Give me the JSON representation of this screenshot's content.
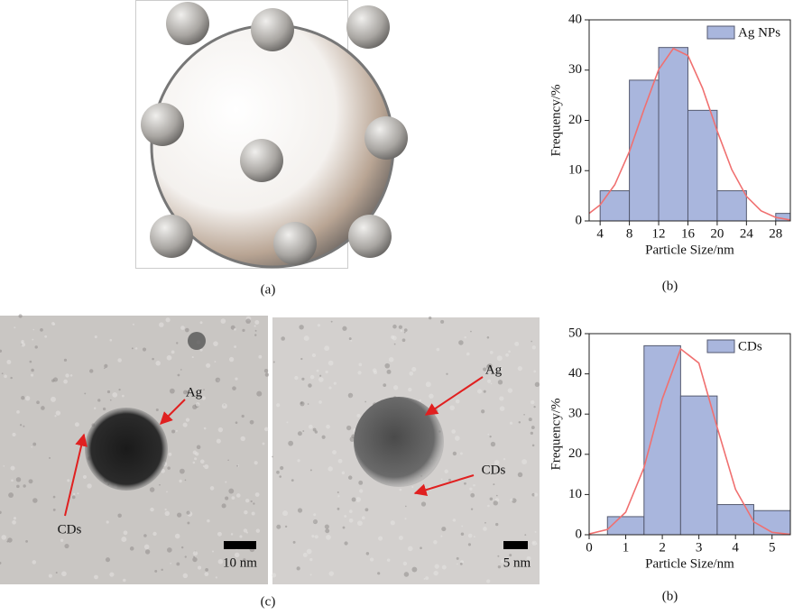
{
  "chart_data": [
    {
      "type": "histogram",
      "name": "Ag NPs",
      "color": "#a9b6dd",
      "edge_color": "#555a70",
      "bins": [
        4,
        8,
        12,
        16,
        20,
        24,
        28,
        32
      ],
      "values": [
        6,
        28,
        34.5,
        22,
        6,
        0,
        1.5
      ],
      "fit": {
        "x": [
          2.5,
          4,
          6,
          8,
          10,
          12,
          14,
          16,
          18,
          20,
          22,
          24,
          26,
          28,
          30
        ],
        "y": [
          1.5,
          3.2,
          7.2,
          13.8,
          22.2,
          30.1,
          34.3,
          32.9,
          26.4,
          17.9,
          10.2,
          4.9,
          2.0,
          0.7,
          0.2
        ]
      },
      "fit_color": "#f07070",
      "xlabel": "Particle Size/nm",
      "ylabel": "Frequency/%",
      "caption": "(b)",
      "xlim": [
        2.5,
        30
      ],
      "xticks": [
        4,
        8,
        12,
        16,
        20,
        24,
        28
      ],
      "ylim": [
        0,
        40
      ],
      "yticks": [
        0,
        10,
        20,
        30,
        40
      ],
      "legend": "upper right"
    },
    {
      "type": "histogram",
      "name": "CDs",
      "color": "#a9b6dd",
      "edge_color": "#555a70",
      "bins": [
        0.5,
        1.5,
        2.5,
        3.5,
        4.5,
        5.5
      ],
      "values": [
        4.5,
        47,
        34.5,
        7.5,
        6
      ],
      "fit": {
        "x": [
          0,
          0.5,
          1,
          1.5,
          2,
          2.5,
          3,
          3.5,
          4,
          4.5,
          5,
          5.5
        ],
        "y": [
          0.2,
          1.3,
          5.6,
          16.7,
          33.8,
          46.2,
          42.7,
          26.7,
          11.3,
          3.2,
          0.6,
          0.1
        ]
      },
      "fit_color": "#f07070",
      "xlabel": "Particle Size/nm",
      "ylabel": "Frequency/%",
      "caption": "(b)",
      "xlim": [
        0,
        5.5
      ],
      "xticks": [
        0,
        1,
        2,
        3,
        4,
        5
      ],
      "ylim": [
        0,
        50
      ],
      "yticks": [
        0,
        10,
        20,
        30,
        40,
        50
      ],
      "legend": "upper right"
    }
  ],
  "figure": {
    "panel_a": "(a)",
    "panel_c": "(c)",
    "tem_left": {
      "ag": "Ag",
      "cds": "CDs",
      "scale": "10 nm"
    },
    "tem_right": {
      "ag": "Ag",
      "cds": "CDs",
      "scale": "5 nm"
    }
  }
}
